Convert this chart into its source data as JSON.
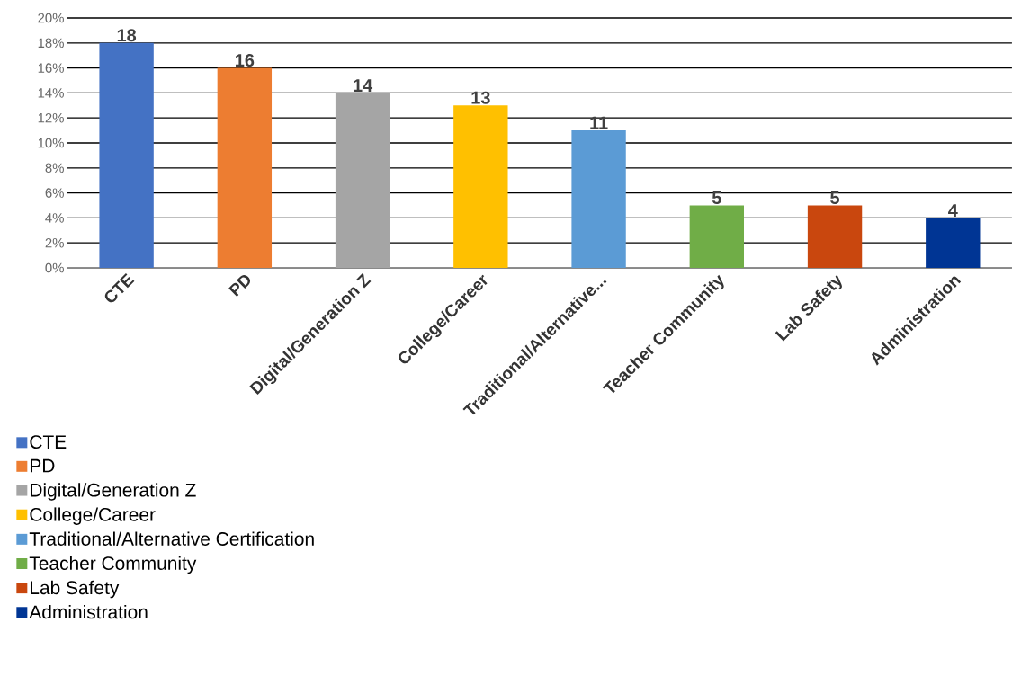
{
  "chart_data": {
    "type": "bar",
    "categories": [
      "CTE",
      "PD",
      "Digital/Generation Z",
      "College/Career",
      "Traditional/Alternative...",
      "Teacher Community",
      "Lab Safety",
      "Administration"
    ],
    "series": [
      {
        "name": "CTE",
        "color": "#4472c4",
        "values": [
          18,
          null,
          null,
          null,
          null,
          null,
          null,
          null
        ]
      },
      {
        "name": "PD",
        "color": "#ed7d31",
        "values": [
          null,
          16,
          null,
          null,
          null,
          null,
          null,
          null
        ]
      },
      {
        "name": "Digital/Generation Z",
        "color": "#a5a5a5",
        "values": [
          null,
          null,
          14,
          null,
          null,
          null,
          null,
          null
        ]
      },
      {
        "name": "College/Career",
        "color": "#ffc000",
        "values": [
          null,
          null,
          null,
          13,
          null,
          null,
          null,
          null
        ]
      },
      {
        "name": "Traditional/Alternative Certification",
        "color": "#5b9bd5",
        "values": [
          null,
          null,
          null,
          null,
          11,
          null,
          null,
          null
        ]
      },
      {
        "name": "Teacher Community",
        "color": "#70ad47",
        "values": [
          null,
          null,
          null,
          null,
          null,
          5,
          null,
          null
        ]
      },
      {
        "name": "Lab Safety",
        "color": "#c9470e",
        "values": [
          null,
          null,
          null,
          null,
          null,
          null,
          5,
          null
        ]
      },
      {
        "name": "Administration",
        "color": "#003594",
        "values": [
          null,
          null,
          null,
          null,
          null,
          null,
          null,
          4
        ]
      }
    ],
    "ylim": [
      0,
      20
    ],
    "yticks": [
      {
        "value": 0,
        "label": "0%"
      },
      {
        "value": 2,
        "label": "2%"
      },
      {
        "value": 4,
        "label": "4%"
      },
      {
        "value": 6,
        "label": "6%"
      },
      {
        "value": 8,
        "label": "8%"
      },
      {
        "value": 10,
        "label": "10%"
      },
      {
        "value": 12,
        "label": "12%"
      },
      {
        "value": 14,
        "label": "14%"
      },
      {
        "value": 16,
        "label": "16%"
      },
      {
        "value": 18,
        "label": "18%"
      },
      {
        "value": 20,
        "label": "20%"
      }
    ],
    "grid": "y",
    "data_labels": true,
    "legend": "bottom left"
  }
}
